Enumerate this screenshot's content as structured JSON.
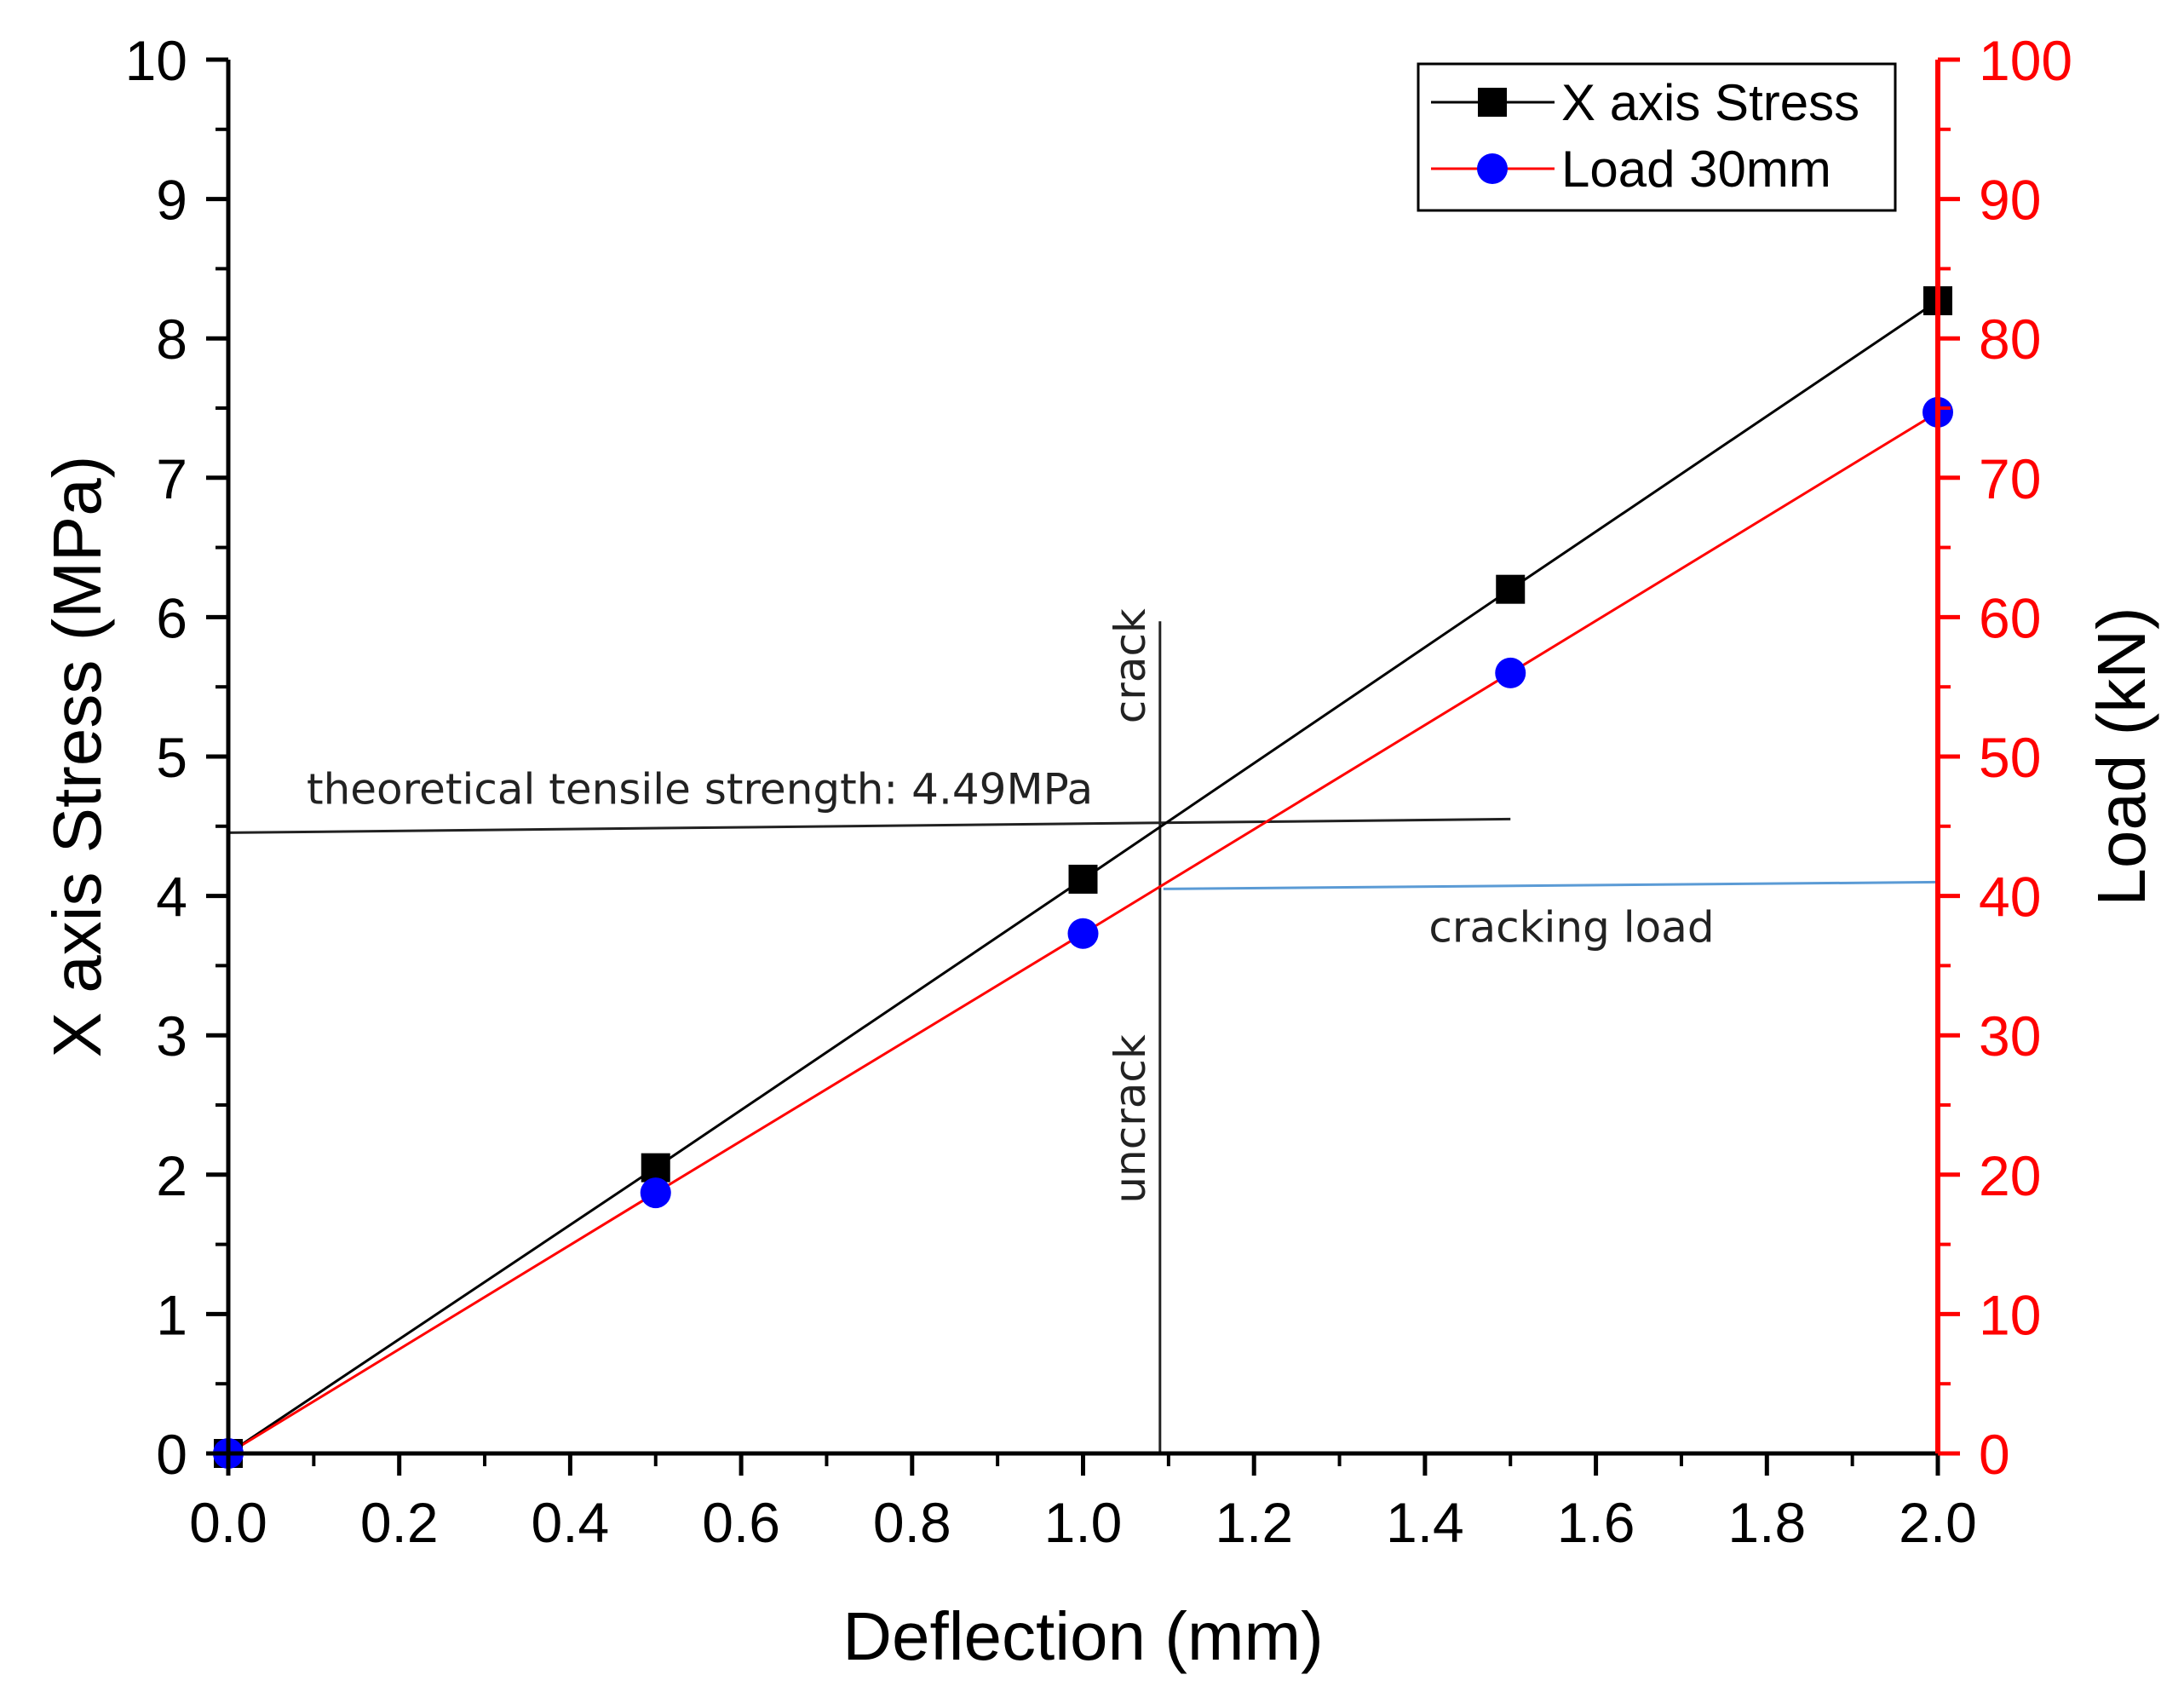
{
  "chart_data": {
    "type": "line",
    "x": [
      0.0,
      0.5,
      1.0,
      1.5,
      2.0
    ],
    "xlabel": "Deflection (mm)",
    "ylabel": "X axis Stress (MPa)",
    "y2label": "Load (kN)",
    "xlim": [
      0.0,
      2.0
    ],
    "ylim": [
      0,
      10
    ],
    "y2lim": [
      0,
      100
    ],
    "xticks": [
      "0.0",
      "0.2",
      "0.4",
      "0.6",
      "0.8",
      "1.0",
      "1.2",
      "1.4",
      "1.6",
      "1.8",
      "2.0"
    ],
    "yticks": [
      "0",
      "1",
      "2",
      "3",
      "4",
      "5",
      "6",
      "7",
      "8",
      "9",
      "10"
    ],
    "y2ticks": [
      "0",
      "10",
      "20",
      "30",
      "40",
      "50",
      "60",
      "70",
      "80",
      "90",
      "100"
    ],
    "series": [
      {
        "name": "X axis Stress",
        "axis": "left",
        "marker": "square",
        "color": "#000000",
        "values": [
          0.0,
          2.05,
          4.12,
          6.2,
          8.27
        ]
      },
      {
        "name": "Load 30mm",
        "axis": "right",
        "marker": "circle",
        "color": "#ff0000",
        "marker_color": "#0000ff",
        "values": [
          0.0,
          18.7,
          37.3,
          56.0,
          74.7
        ]
      }
    ],
    "legend_position": "top-right",
    "annotations": {
      "tensile_label": "theoretical tensile strength: 4.49MPa",
      "tensile_value": 4.49,
      "crack_x": 1.09,
      "crack_label": "crack",
      "uncrack_label": "uncrack",
      "cracking_load_label": "cracking load",
      "cracking_load_value": 40.5
    },
    "colors": {
      "axis_right": "#ff0000",
      "annotation_line": "#222222",
      "cracking_line": "#5b9bd5"
    }
  }
}
